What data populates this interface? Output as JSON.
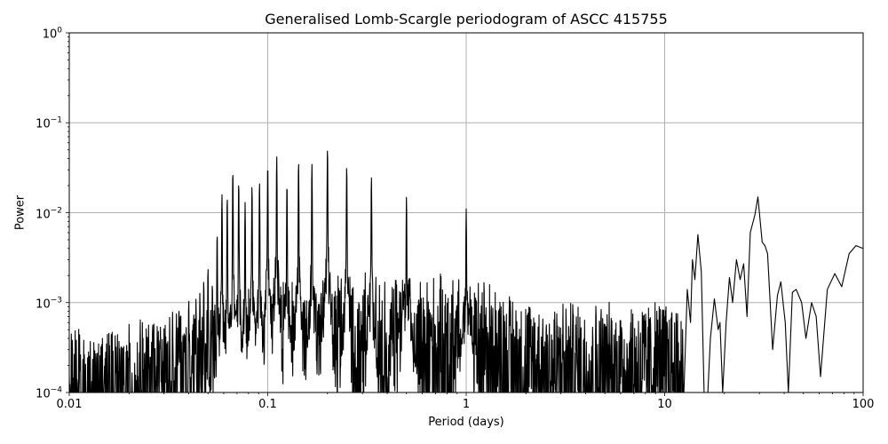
{
  "chart_data": {
    "type": "line",
    "title": "Generalised Lomb-Scargle periodogram of ASCC 415755",
    "xlabel": "Period (days)",
    "ylabel": "Power",
    "xscale": "log",
    "yscale": "log",
    "xlim": [
      0.01,
      100
    ],
    "ylim": [
      0.0001,
      1
    ],
    "grid": true,
    "line_color": "#000000",
    "grid_color": "#b0b0b0",
    "x_ticks": [
      {
        "value": 0.01,
        "label": "0.01"
      },
      {
        "value": 0.1,
        "label": "0.1"
      },
      {
        "value": 1,
        "label": "1"
      },
      {
        "value": 10,
        "label": "10"
      },
      {
        "value": 100,
        "label": "100"
      }
    ],
    "y_ticks": [
      {
        "value": 1,
        "base": "10",
        "exp": "0"
      },
      {
        "value": 0.1,
        "base": "10",
        "exp": "−1"
      },
      {
        "value": 0.01,
        "base": "10",
        "exp": "−2"
      },
      {
        "value": 0.001,
        "base": "10",
        "exp": "−3"
      },
      {
        "value": 0.0001,
        "base": "10",
        "exp": "−4"
      }
    ],
    "noise_floor_envelope": [
      {
        "period": 0.01,
        "power": 0.0004
      },
      {
        "period": 0.02,
        "power": 0.00045
      },
      {
        "period": 0.03,
        "power": 0.0006
      },
      {
        "period": 0.05,
        "power": 0.0009
      },
      {
        "period": 0.1,
        "power": 0.0014
      },
      {
        "period": 0.2,
        "power": 0.0016
      },
      {
        "period": 0.5,
        "power": 0.0015
      },
      {
        "period": 1.0,
        "power": 0.0016
      },
      {
        "period": 2.0,
        "power": 0.0009
      },
      {
        "period": 5.0,
        "power": 0.0008
      },
      {
        "period": 10.0,
        "power": 0.0009
      },
      {
        "period": 13.0,
        "power": 0.0008
      }
    ],
    "harmonic_peaks": [
      {
        "period": 0.0357,
        "power": 0.0009
      },
      {
        "period": 0.04,
        "power": 0.0011
      },
      {
        "period": 0.0435,
        "power": 0.0011
      },
      {
        "period": 0.0455,
        "power": 0.0013
      },
      {
        "period": 0.0476,
        "power": 0.0018
      },
      {
        "period": 0.05,
        "power": 0.0025
      },
      {
        "period": 0.0526,
        "power": 0.0017
      },
      {
        "period": 0.0556,
        "power": 0.006
      },
      {
        "period": 0.0588,
        "power": 0.016
      },
      {
        "period": 0.0625,
        "power": 0.015
      },
      {
        "period": 0.0667,
        "power": 0.029
      },
      {
        "period": 0.0714,
        "power": 0.022
      },
      {
        "period": 0.0769,
        "power": 0.013
      },
      {
        "period": 0.0833,
        "power": 0.02
      },
      {
        "period": 0.0909,
        "power": 0.022
      },
      {
        "period": 0.1,
        "power": 0.034
      },
      {
        "period": 0.111,
        "power": 0.042
      },
      {
        "period": 0.125,
        "power": 0.021
      },
      {
        "period": 0.143,
        "power": 0.037
      },
      {
        "period": 0.167,
        "power": 0.035
      },
      {
        "period": 0.2,
        "power": 0.052
      },
      {
        "period": 0.25,
        "power": 0.033
      },
      {
        "period": 0.333,
        "power": 0.025
      },
      {
        "period": 0.5,
        "power": 0.015
      },
      {
        "period": 1.0,
        "power": 0.011
      }
    ],
    "long_period_curve": [
      {
        "period": 12.5,
        "power": 0.0001
      },
      {
        "period": 13.0,
        "power": 0.0014
      },
      {
        "period": 13.5,
        "power": 0.0006
      },
      {
        "period": 13.8,
        "power": 0.003
      },
      {
        "period": 14.2,
        "power": 0.0018
      },
      {
        "period": 14.7,
        "power": 0.0057
      },
      {
        "period": 15.3,
        "power": 0.0022
      },
      {
        "period": 15.8,
        "power": 0.0001
      },
      {
        "period": 16.5,
        "power": 0.0001
      },
      {
        "period": 17.0,
        "power": 0.0004
      },
      {
        "period": 17.8,
        "power": 0.0011
      },
      {
        "period": 18.6,
        "power": 0.0005
      },
      {
        "period": 19.0,
        "power": 0.0006
      },
      {
        "period": 19.6,
        "power": 0.0001
      },
      {
        "period": 20.4,
        "power": 0.0006
      },
      {
        "period": 21.2,
        "power": 0.0019
      },
      {
        "period": 22.0,
        "power": 0.001
      },
      {
        "period": 23.0,
        "power": 0.003
      },
      {
        "period": 24.0,
        "power": 0.0018
      },
      {
        "period": 25.0,
        "power": 0.0027
      },
      {
        "period": 26.0,
        "power": 0.0007
      },
      {
        "period": 27.0,
        "power": 0.006
      },
      {
        "period": 28.5,
        "power": 0.0095
      },
      {
        "period": 29.5,
        "power": 0.015
      },
      {
        "period": 31.0,
        "power": 0.0047
      },
      {
        "period": 32.0,
        "power": 0.0043
      },
      {
        "period": 33.0,
        "power": 0.0035
      },
      {
        "period": 35.0,
        "power": 0.0003
      },
      {
        "period": 37.0,
        "power": 0.0012
      },
      {
        "period": 38.5,
        "power": 0.0017
      },
      {
        "period": 40.5,
        "power": 0.0006
      },
      {
        "period": 42.0,
        "power": 0.0001
      },
      {
        "period": 44.0,
        "power": 0.0013
      },
      {
        "period": 46.0,
        "power": 0.0014
      },
      {
        "period": 49.0,
        "power": 0.001
      },
      {
        "period": 51.5,
        "power": 0.0004
      },
      {
        "period": 55.0,
        "power": 0.001
      },
      {
        "period": 58.0,
        "power": 0.0007
      },
      {
        "period": 61.0,
        "power": 0.00015
      },
      {
        "period": 66.0,
        "power": 0.0014
      },
      {
        "period": 72.0,
        "power": 0.0021
      },
      {
        "period": 78.0,
        "power": 0.0015
      },
      {
        "period": 85.0,
        "power": 0.0035
      },
      {
        "period": 92.0,
        "power": 0.0043
      },
      {
        "period": 100.0,
        "power": 0.004
      }
    ]
  }
}
